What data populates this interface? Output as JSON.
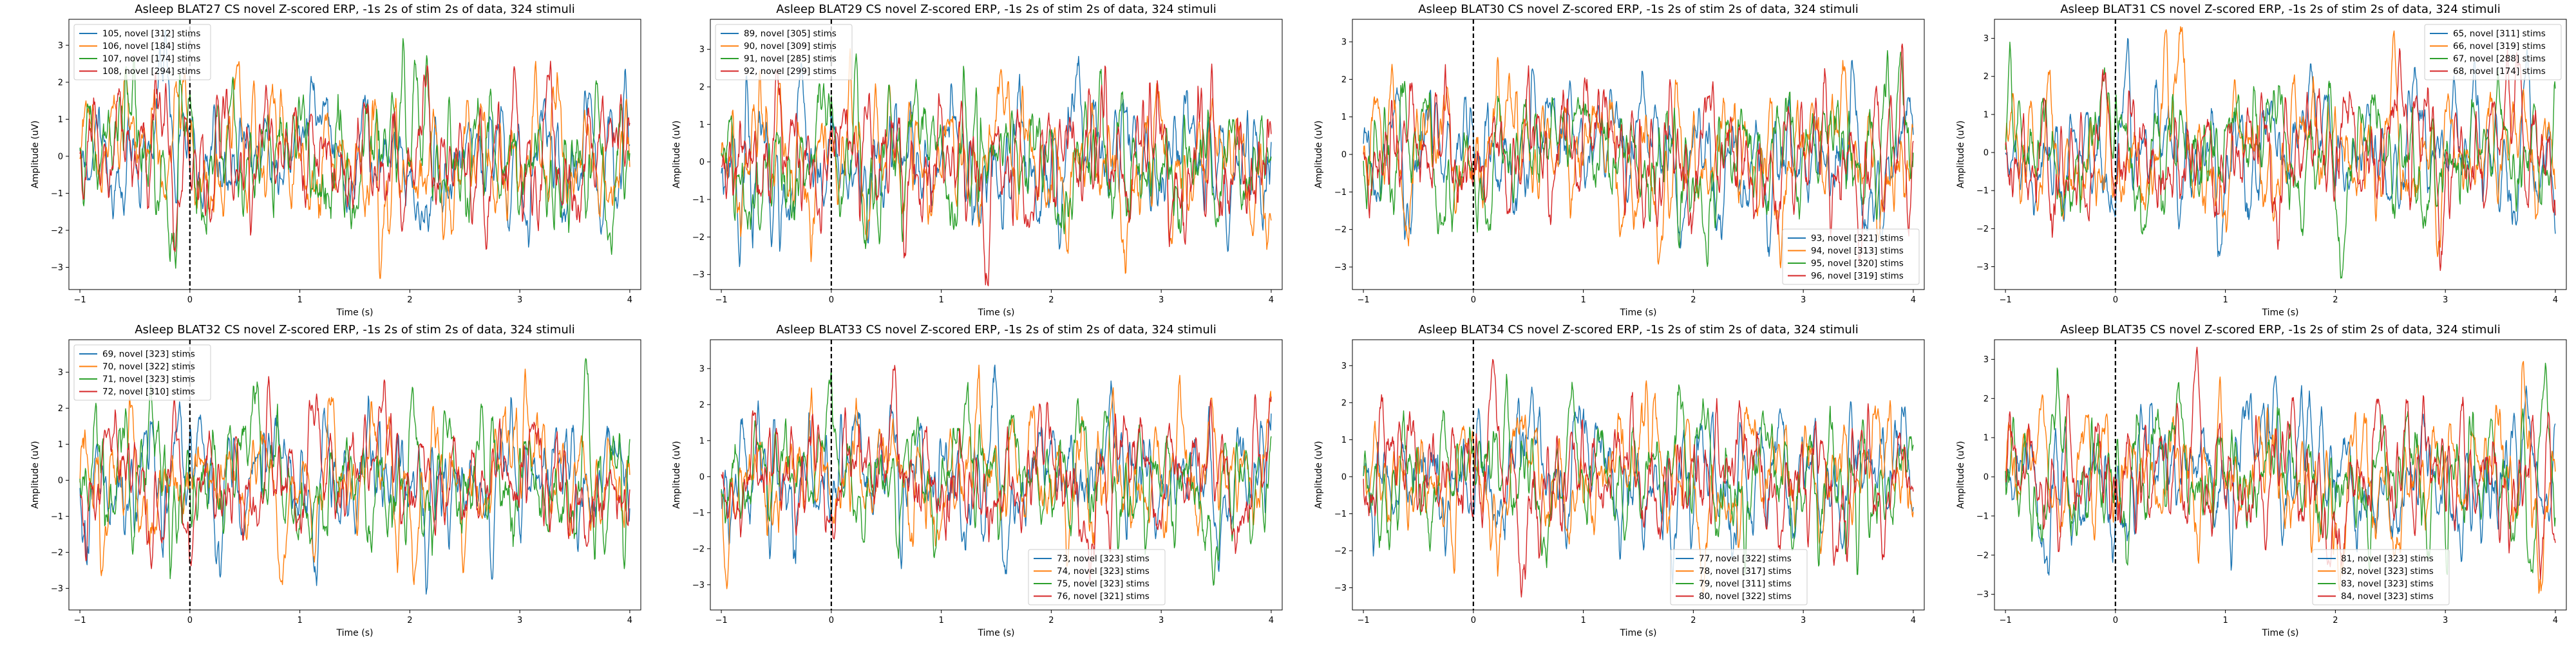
{
  "colors": {
    "series": [
      "#1f77b4",
      "#ff7f0e",
      "#2ca02c",
      "#d62728"
    ],
    "stimulus_line": "#000000"
  },
  "chart_data": [
    {
      "type": "line",
      "title": "Asleep BLAT27 CS novel Z-scored ERP, -1s 2s of stim 2s of data, 324 stimuli",
      "xlabel": "Time (s)",
      "ylabel": "Amplitude (uV)",
      "xlim": [
        -1.1,
        4.1
      ],
      "ylim": [
        -3.6,
        3.7
      ],
      "xticks": [
        -1,
        0,
        1,
        2,
        3,
        4
      ],
      "yticks": [
        -3,
        -2,
        -1,
        0,
        1,
        2,
        3
      ],
      "grid": false,
      "legend_position": "upper-left",
      "stimulus_onset": 0,
      "series": [
        {
          "name": "105, novel [312] stims",
          "amplitude": 1.0,
          "seed": 27105
        },
        {
          "name": "106, novel [184] stims",
          "amplitude": 1.05,
          "seed": 27106
        },
        {
          "name": "107, novel [174] stims",
          "amplitude": 1.1,
          "seed": 27107
        },
        {
          "name": "108, novel [294] stims",
          "amplitude": 1.0,
          "seed": 27108
        }
      ]
    },
    {
      "type": "line",
      "title": "Asleep BLAT29 CS novel Z-scored ERP, -1s 2s of stim 2s of data, 324 stimuli",
      "xlabel": "Time (s)",
      "ylabel": "Amplitude (uV)",
      "xlim": [
        -1.1,
        4.1
      ],
      "ylim": [
        -3.4,
        3.8
      ],
      "xticks": [
        -1,
        0,
        1,
        2,
        3,
        4
      ],
      "yticks": [
        -3,
        -2,
        -1,
        0,
        1,
        2,
        3
      ],
      "grid": false,
      "legend_position": "upper-left",
      "stimulus_onset": 0,
      "series": [
        {
          "name": "89, novel [305] stims",
          "amplitude": 1.0,
          "seed": 29089
        },
        {
          "name": "90, novel [309] stims",
          "amplitude": 1.05,
          "seed": 29090
        },
        {
          "name": "91, novel [285] stims",
          "amplitude": 1.0,
          "seed": 29091
        },
        {
          "name": "92, novel [299] stims",
          "amplitude": 1.0,
          "seed": 29092
        }
      ]
    },
    {
      "type": "line",
      "title": "Asleep BLAT30 CS novel Z-scored ERP, -1s 2s of stim 2s of data, 324 stimuli",
      "xlabel": "Time (s)",
      "ylabel": "Amplitude (uV)",
      "xlim": [
        -1.1,
        4.1
      ],
      "ylim": [
        -3.6,
        3.6
      ],
      "xticks": [
        -1,
        0,
        1,
        2,
        3,
        4
      ],
      "yticks": [
        -3,
        -2,
        -1,
        0,
        1,
        2,
        3
      ],
      "grid": false,
      "legend_position": "lower-right",
      "stimulus_onset": 0,
      "series": [
        {
          "name": "93, novel [321] stims",
          "amplitude": 1.0,
          "seed": 30093
        },
        {
          "name": "94, novel [313] stims",
          "amplitude": 1.05,
          "seed": 30094
        },
        {
          "name": "95, novel [320] stims",
          "amplitude": 1.0,
          "seed": 30095
        },
        {
          "name": "96, novel [319] stims",
          "amplitude": 1.0,
          "seed": 30096
        }
      ]
    },
    {
      "type": "line",
      "title": "Asleep BLAT31 CS novel Z-scored ERP, -1s 2s of stim 2s of data, 324 stimuli",
      "xlabel": "Time (s)",
      "ylabel": "Amplitude (uV)",
      "xlim": [
        -1.1,
        4.1
      ],
      "ylim": [
        -3.6,
        3.5
      ],
      "xticks": [
        -1,
        0,
        1,
        2,
        3,
        4
      ],
      "yticks": [
        -3,
        -2,
        -1,
        0,
        1,
        2,
        3
      ],
      "grid": false,
      "legend_position": "upper-right",
      "stimulus_onset": 0,
      "series": [
        {
          "name": "65, novel [311] stims",
          "amplitude": 1.0,
          "seed": 31065
        },
        {
          "name": "66, novel [319] stims",
          "amplitude": 1.05,
          "seed": 31066
        },
        {
          "name": "67, novel [288] stims",
          "amplitude": 1.0,
          "seed": 31067
        },
        {
          "name": "68, novel [174] stims",
          "amplitude": 1.0,
          "seed": 31068
        }
      ]
    },
    {
      "type": "line",
      "title": "Asleep BLAT32 CS novel Z-scored ERP, -1s 2s of stim 2s of data, 324 stimuli",
      "xlabel": "Time (s)",
      "ylabel": "Amplitude (uV)",
      "xlim": [
        -1.1,
        4.1
      ],
      "ylim": [
        -3.6,
        3.9
      ],
      "xticks": [
        -1,
        0,
        1,
        2,
        3,
        4
      ],
      "yticks": [
        -3,
        -2,
        -1,
        0,
        1,
        2,
        3
      ],
      "grid": false,
      "legend_position": "upper-left",
      "stimulus_onset": 0,
      "series": [
        {
          "name": "69, novel [323] stims",
          "amplitude": 1.0,
          "seed": 32069
        },
        {
          "name": "70, novel [322] stims",
          "amplitude": 1.05,
          "seed": 32070
        },
        {
          "name": "71, novel [323] stims",
          "amplitude": 1.1,
          "seed": 32071
        },
        {
          "name": "72, novel [310] stims",
          "amplitude": 1.0,
          "seed": 32072
        }
      ]
    },
    {
      "type": "line",
      "title": "Asleep BLAT33 CS novel Z-scored ERP, -1s 2s of stim 2s of data, 324 stimuli",
      "xlabel": "Time (s)",
      "ylabel": "Amplitude (uV)",
      "xlim": [
        -1.1,
        4.1
      ],
      "ylim": [
        -3.7,
        3.8
      ],
      "xticks": [
        -1,
        0,
        1,
        2,
        3,
        4
      ],
      "yticks": [
        -3,
        -2,
        -1,
        0,
        1,
        2,
        3
      ],
      "grid": false,
      "legend_position": "lower-center",
      "stimulus_onset": 0,
      "series": [
        {
          "name": "73, novel [323] stims",
          "amplitude": 1.0,
          "seed": 33073
        },
        {
          "name": "74, novel [323] stims",
          "amplitude": 1.0,
          "seed": 33074
        },
        {
          "name": "75, novel [323] stims",
          "amplitude": 1.0,
          "seed": 33075
        },
        {
          "name": "76, novel [321] stims",
          "amplitude": 1.0,
          "seed": 33076
        }
      ]
    },
    {
      "type": "line",
      "title": "Asleep BLAT34 CS novel Z-scored ERP, -1s 2s of stim 2s of data, 324 stimuli",
      "xlabel": "Time (s)",
      "ylabel": "Amplitude (uV)",
      "xlim": [
        -1.1,
        4.1
      ],
      "ylim": [
        -3.6,
        3.7
      ],
      "xticks": [
        -1,
        0,
        1,
        2,
        3,
        4
      ],
      "yticks": [
        -3,
        -2,
        -1,
        0,
        1,
        2,
        3
      ],
      "grid": false,
      "legend_position": "lower-center",
      "stimulus_onset": 0,
      "series": [
        {
          "name": "77, novel [322] stims",
          "amplitude": 1.0,
          "seed": 34077
        },
        {
          "name": "78, novel [317] stims",
          "amplitude": 1.0,
          "seed": 34078
        },
        {
          "name": "79, novel [311] stims",
          "amplitude": 1.0,
          "seed": 34079
        },
        {
          "name": "80, novel [322] stims",
          "amplitude": 1.0,
          "seed": 34080
        }
      ]
    },
    {
      "type": "line",
      "title": "Asleep BLAT35 CS novel Z-scored ERP, -1s 2s of stim 2s of data, 324 stimuli",
      "xlabel": "Time (s)",
      "ylabel": "Amplitude (uV)",
      "xlim": [
        -1.1,
        4.1
      ],
      "ylim": [
        -3.4,
        3.5
      ],
      "xticks": [
        -1,
        0,
        1,
        2,
        3,
        4
      ],
      "yticks": [
        -3,
        -2,
        -1,
        0,
        1,
        2,
        3
      ],
      "grid": false,
      "legend_position": "lower-center",
      "stimulus_onset": 0,
      "series": [
        {
          "name": "81, novel [323] stims",
          "amplitude": 1.0,
          "seed": 35081
        },
        {
          "name": "82, novel [323] stims",
          "amplitude": 1.0,
          "seed": 35082
        },
        {
          "name": "83, novel [323] stims",
          "amplitude": 1.0,
          "seed": 35083
        },
        {
          "name": "84, novel [323] stims",
          "amplitude": 1.0,
          "seed": 35084
        }
      ]
    }
  ]
}
